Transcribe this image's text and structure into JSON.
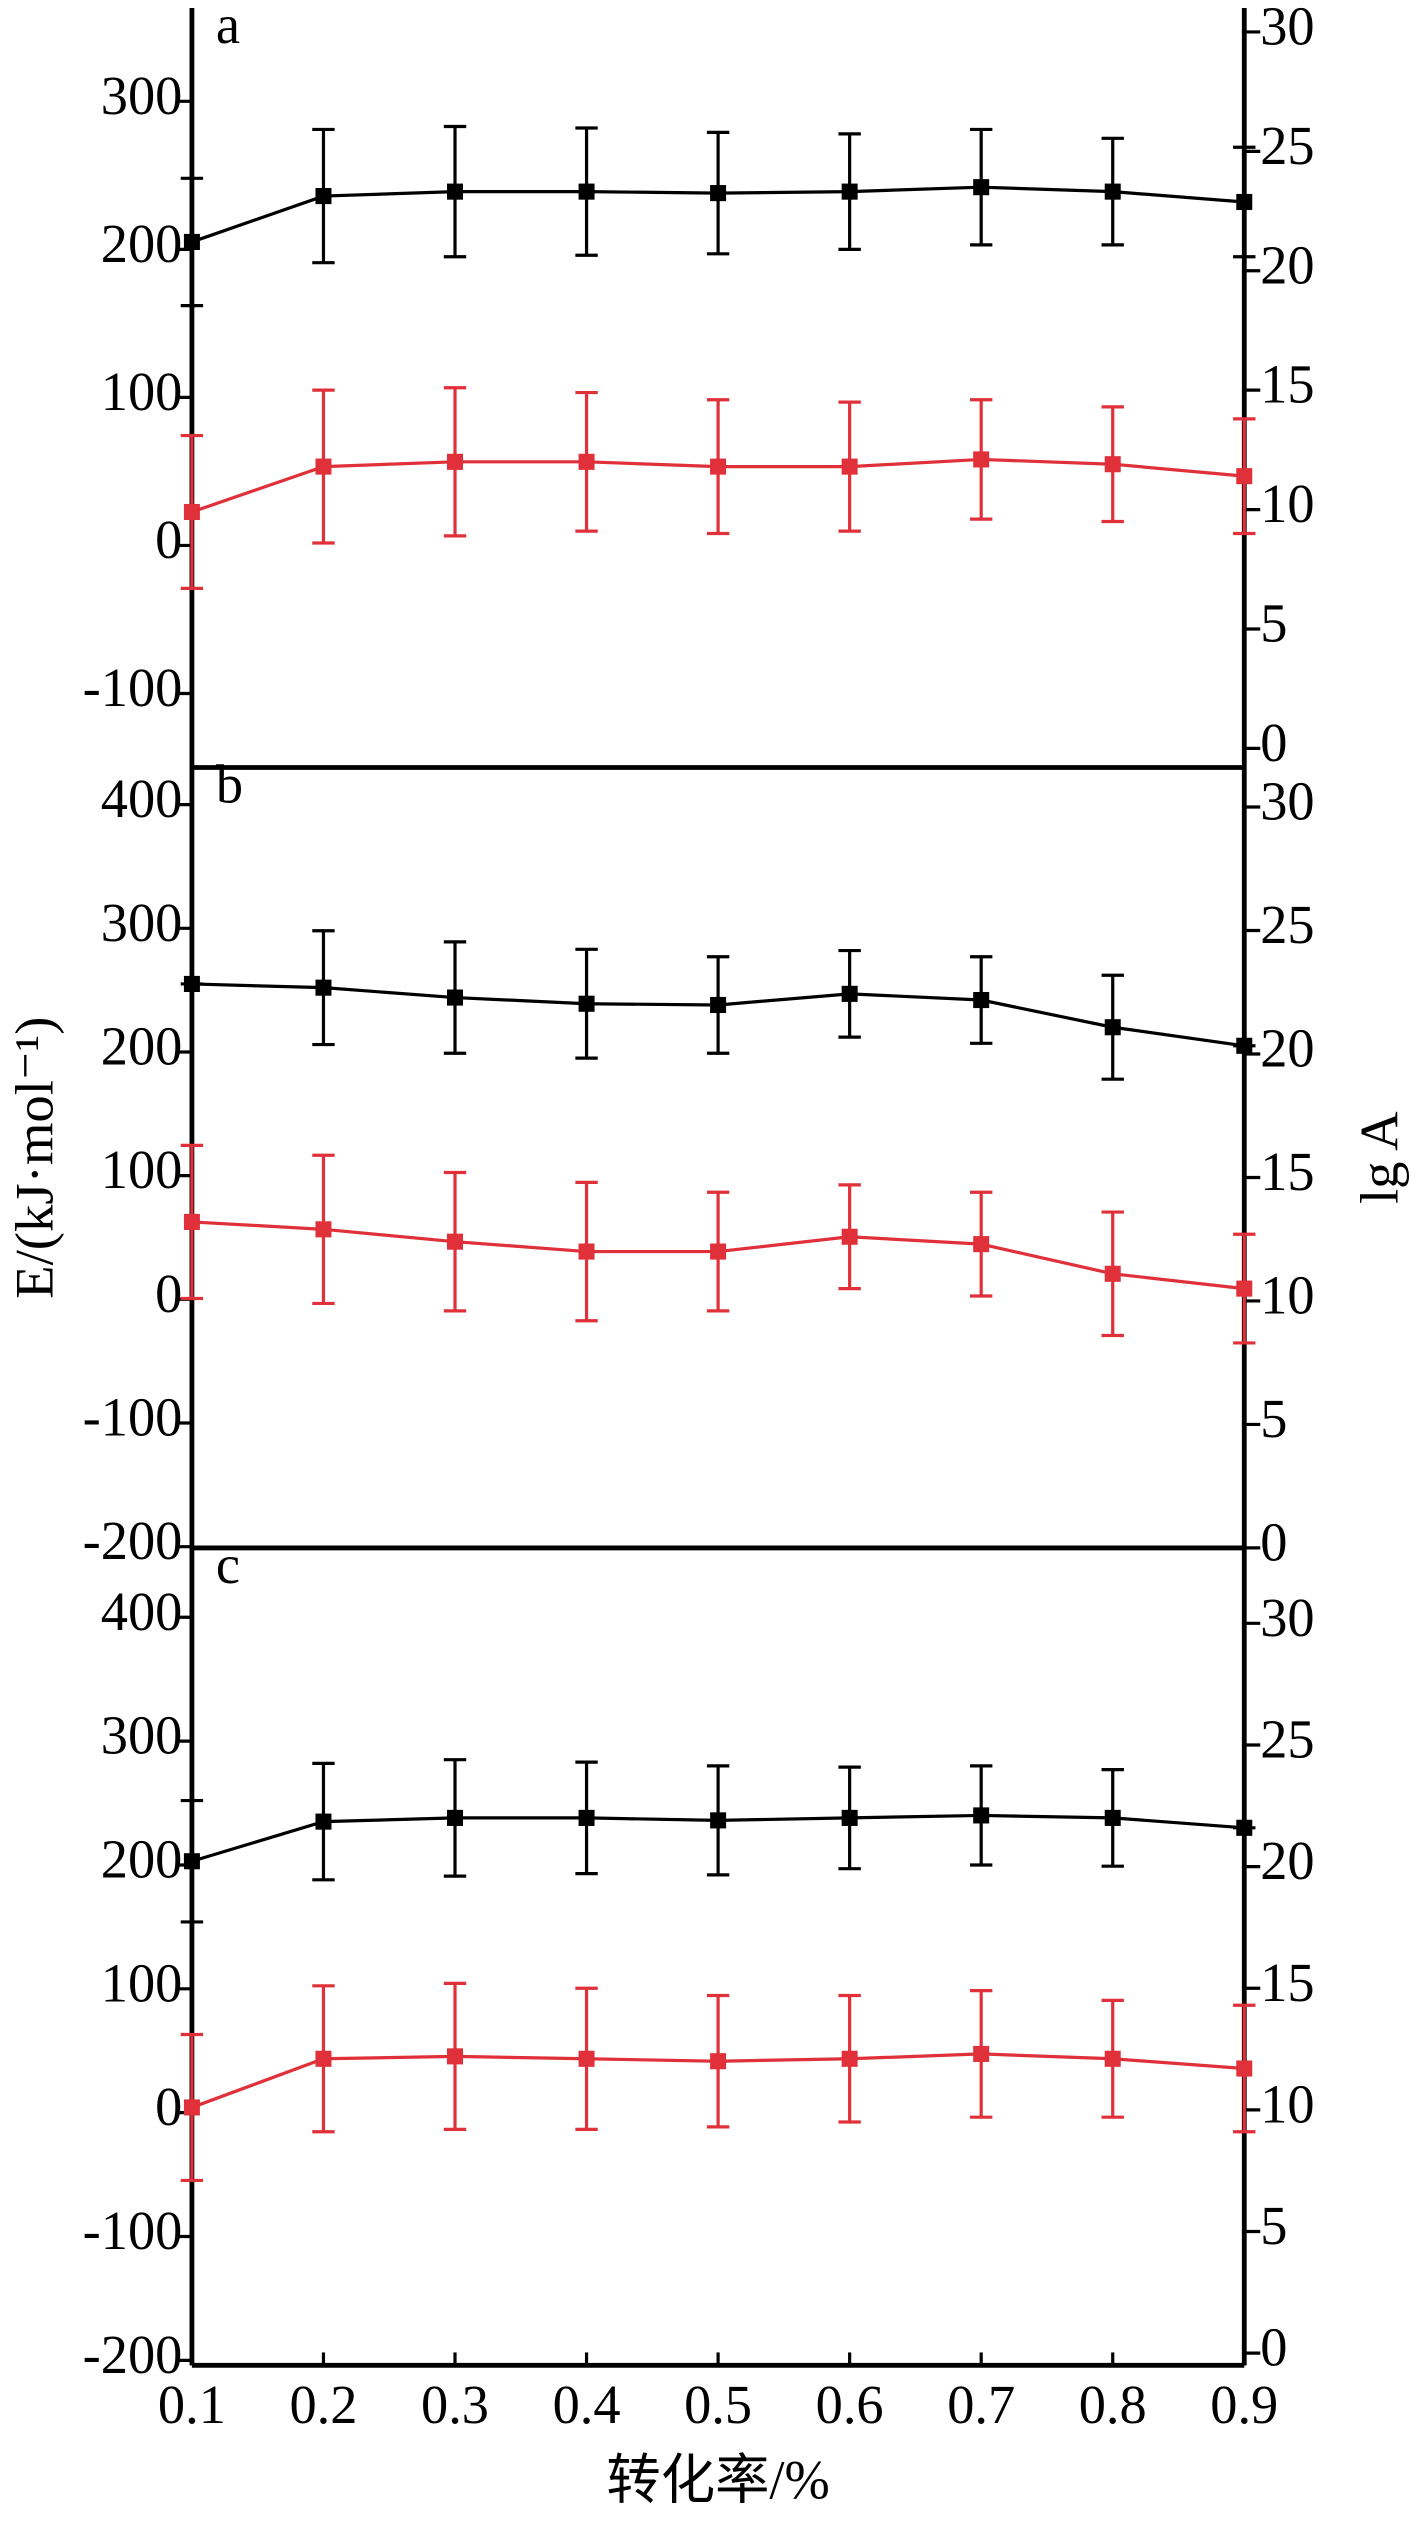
{
  "chart_data": [
    {
      "type": "line",
      "panel_label": "a",
      "x": [
        0.1,
        0.2,
        0.3,
        0.4,
        0.5,
        0.6,
        0.7,
        0.8,
        0.9
      ],
      "xlim": [
        0.1,
        0.9
      ],
      "ylim": [
        -150,
        363
      ],
      "yticks": [
        300,
        200,
        100,
        0,
        -100
      ],
      "y2lim": [
        -0.8,
        31
      ],
      "y2ticks": [
        30,
        25,
        20,
        15,
        10,
        5,
        0
      ],
      "series": [
        {
          "color": "#000000",
          "values": [
            205,
            236,
            239,
            239,
            238,
            239,
            242,
            239,
            232
          ],
          "errors": [
            43,
            45,
            44,
            43,
            41,
            39,
            39,
            36,
            37
          ]
        },
        {
          "color": "#e0303a",
          "axis": "y2",
          "values": [
            9.9,
            11.8,
            12.0,
            12.0,
            11.8,
            11.8,
            12.1,
            11.9,
            11.4
          ],
          "errors": [
            3.2,
            3.2,
            3.1,
            2.9,
            2.8,
            2.7,
            2.5,
            2.4,
            2.4
          ]
        }
      ]
    },
    {
      "type": "line",
      "panel_label": "b",
      "ylabel": "E/(kJ·mol⁻¹)",
      "y2label": "lg A",
      "x": [
        0.1,
        0.2,
        0.3,
        0.4,
        0.5,
        0.6,
        0.7,
        0.8,
        0.9
      ],
      "xlim": [
        0.1,
        0.9
      ],
      "ylim": [
        -201,
        430
      ],
      "yticks": [
        400,
        300,
        200,
        100,
        0,
        -100,
        -200
      ],
      "y2lim": [
        0,
        31.6
      ],
      "y2ticks": [
        30,
        25,
        20,
        15,
        10,
        5,
        0
      ],
      "series": [
        {
          "color": "#000000",
          "values": [
            255,
            252,
            244,
            239,
            238,
            247,
            242,
            220,
            205
          ],
          "errors": [
            0,
            46,
            45,
            44,
            39,
            35,
            35,
            42,
            0
          ]
        },
        {
          "color": "#e0303a",
          "axis": "y2",
          "values": [
            13.2,
            12.9,
            12.4,
            12.0,
            12.0,
            12.6,
            12.3,
            11.1,
            10.5
          ],
          "errors": [
            3.1,
            3.0,
            2.8,
            2.8,
            2.4,
            2.1,
            2.1,
            2.5,
            2.2
          ]
        }
      ]
    },
    {
      "type": "line",
      "panel_label": "c",
      "xlabel": "转化率/%",
      "x": [
        0.1,
        0.2,
        0.3,
        0.4,
        0.5,
        0.6,
        0.7,
        0.8,
        0.9
      ],
      "xlim": [
        0.1,
        0.9
      ],
      "xticks": [
        0.1,
        0.2,
        0.3,
        0.4,
        0.5,
        0.6,
        0.7,
        0.8,
        0.9
      ],
      "ylim": [
        -204,
        456
      ],
      "yticks": [
        400,
        300,
        200,
        100,
        0,
        -100,
        -200
      ],
      "y2lim": [
        -0.5,
        33.1
      ],
      "y2ticks": [
        30,
        25,
        20,
        15,
        10,
        5,
        0
      ],
      "series": [
        {
          "color": "#000000",
          "values": [
            203,
            235,
            238,
            238,
            236,
            238,
            240,
            238,
            230
          ],
          "errors": [
            49,
            47,
            47,
            45,
            44,
            41,
            40,
            39,
            0
          ]
        },
        {
          "color": "#e0303a",
          "axis": "y2",
          "values": [
            10.1,
            12.1,
            12.2,
            12.1,
            12.0,
            12.1,
            12.3,
            12.1,
            11.7
          ],
          "errors": [
            3.0,
            3.0,
            3.0,
            2.9,
            2.7,
            2.6,
            2.6,
            2.4,
            2.6
          ]
        }
      ]
    }
  ]
}
